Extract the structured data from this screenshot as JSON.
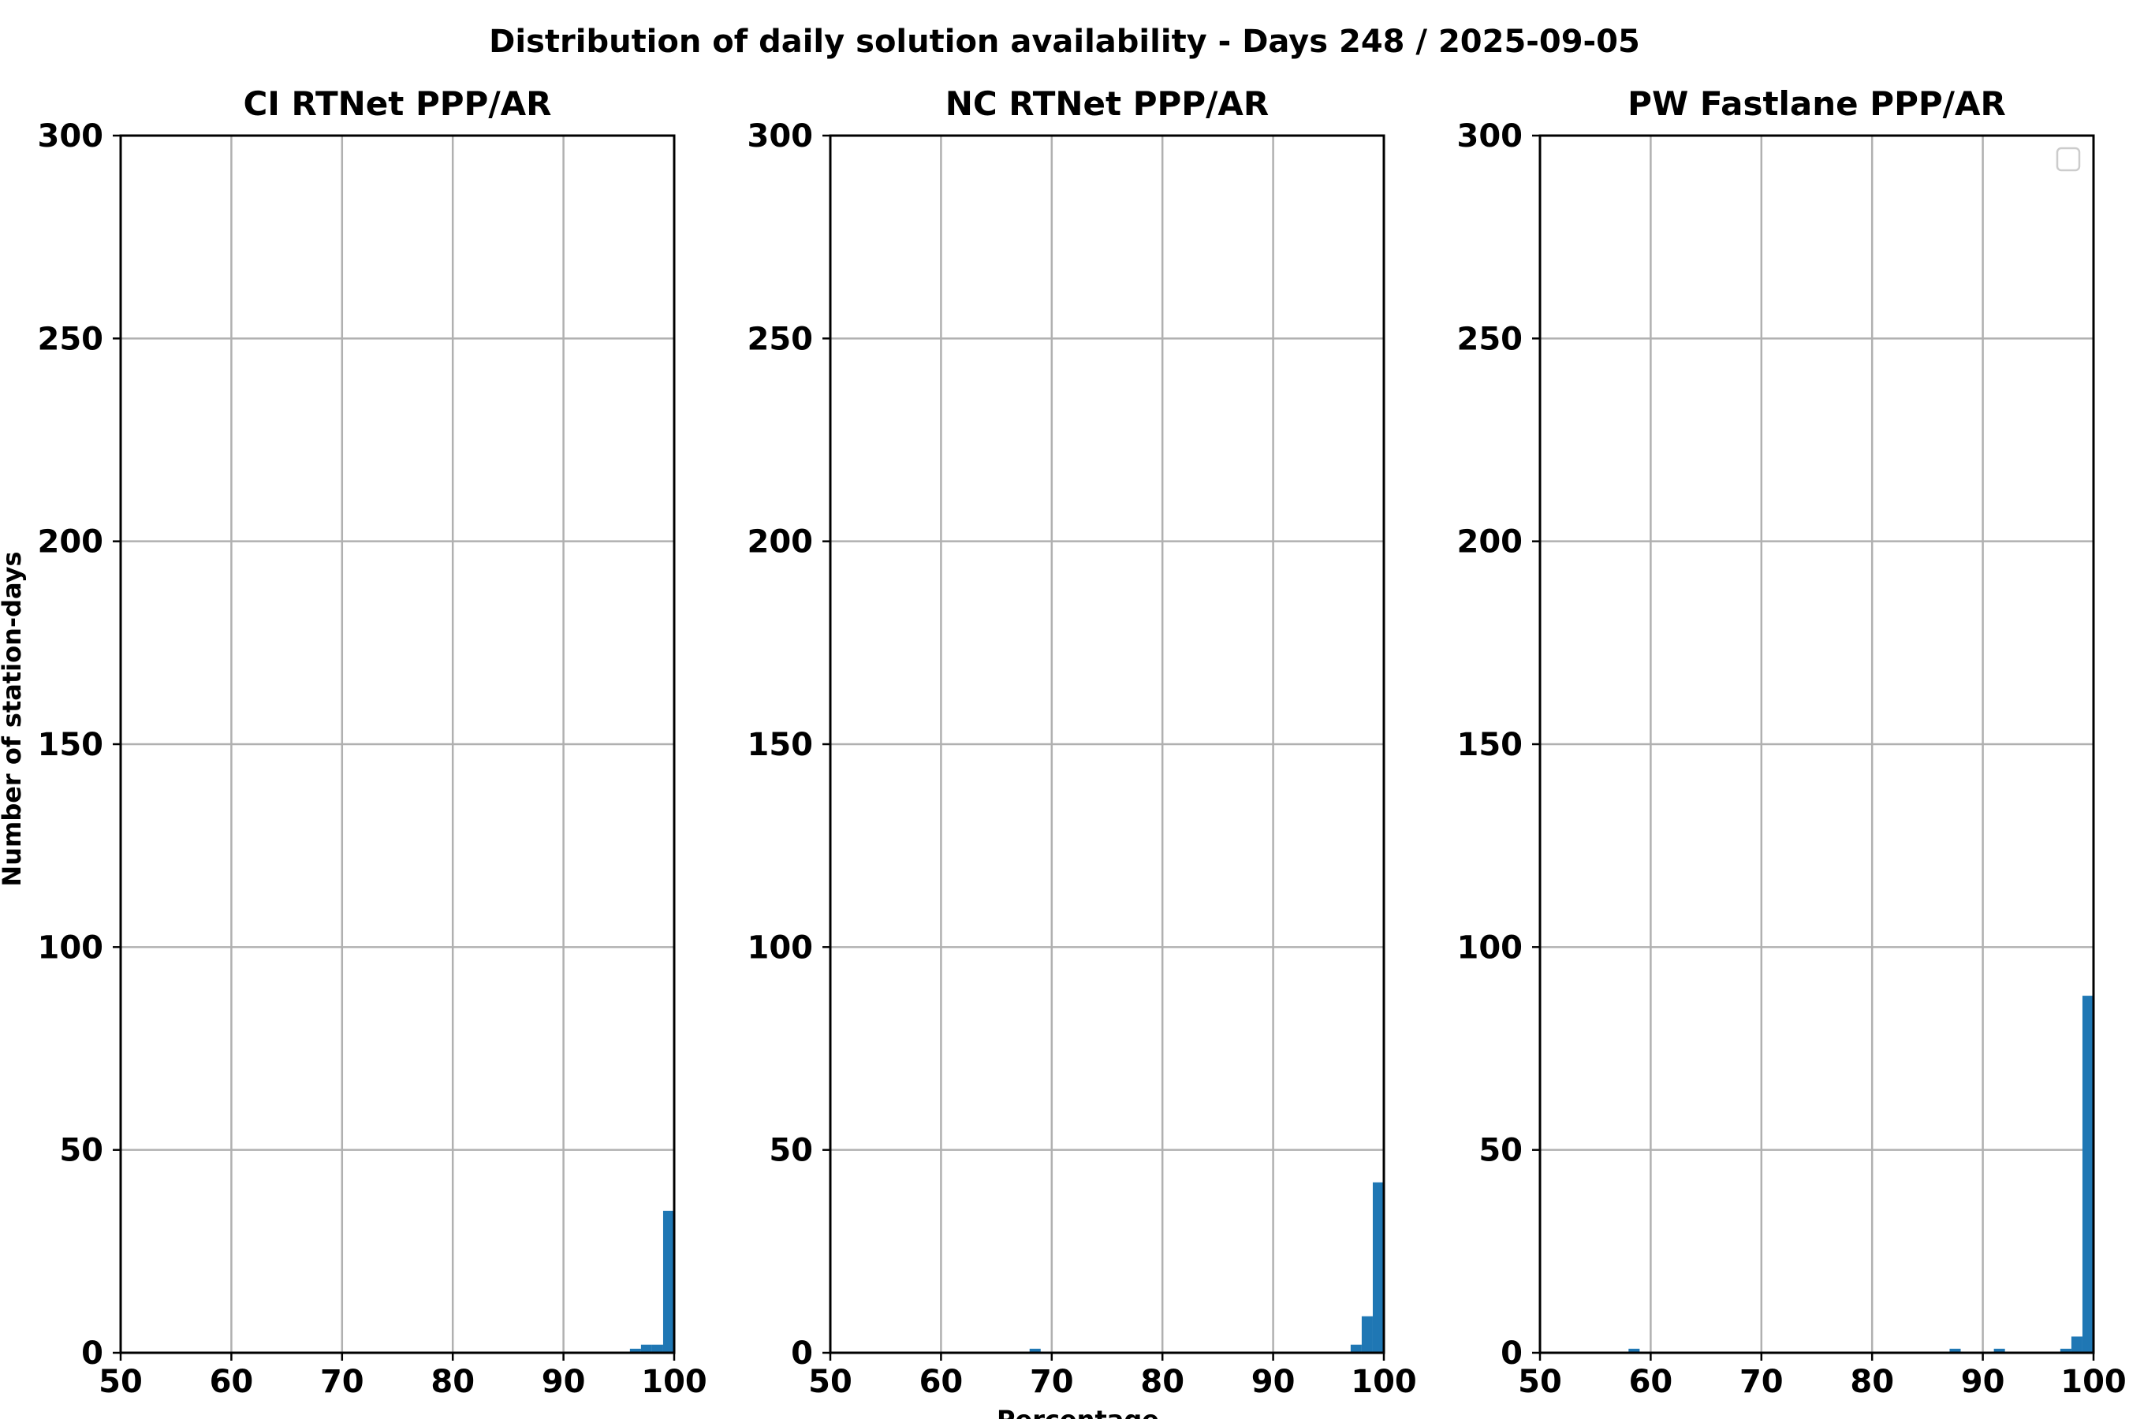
{
  "figure": {
    "suptitle": "Distribution of daily solution availability - Days 248  / 2025-09-05",
    "ylabel": "Number of station-days",
    "xlabel": "Percentage"
  },
  "chart_data": [
    {
      "type": "bar",
      "title": "CI RTNet PPP/AR",
      "xlim": [
        50,
        100
      ],
      "ylim": [
        0,
        300
      ],
      "xticks": [
        "50",
        "60",
        "70",
        "80",
        "90",
        "100"
      ],
      "yticks": [
        "0",
        "50",
        "100",
        "150",
        "200",
        "250",
        "300"
      ],
      "grid": true,
      "bar_color": "#1f77b4",
      "bin_width": 1,
      "bins": [
        {
          "x": 96,
          "count": 1
        },
        {
          "x": 97,
          "count": 2
        },
        {
          "x": 98,
          "count": 2
        },
        {
          "x": 99,
          "count": 35
        }
      ]
    },
    {
      "type": "bar",
      "title": "NC RTNet PPP/AR",
      "xlim": [
        50,
        100
      ],
      "ylim": [
        0,
        300
      ],
      "xticks": [
        "50",
        "60",
        "70",
        "80",
        "90",
        "100"
      ],
      "yticks": [
        "0",
        "50",
        "100",
        "150",
        "200",
        "250",
        "300"
      ],
      "grid": true,
      "bar_color": "#1f77b4",
      "bin_width": 1,
      "bins": [
        {
          "x": 68,
          "count": 1
        },
        {
          "x": 97,
          "count": 2
        },
        {
          "x": 98,
          "count": 9
        },
        {
          "x": 99,
          "count": 42
        }
      ]
    },
    {
      "type": "bar",
      "title": "PW Fastlane PPP/AR",
      "xlim": [
        50,
        100
      ],
      "ylim": [
        0,
        300
      ],
      "xticks": [
        "50",
        "60",
        "70",
        "80",
        "90",
        "100"
      ],
      "yticks": [
        "0",
        "50",
        "100",
        "150",
        "200",
        "250",
        "300"
      ],
      "grid": true,
      "legend": "top-right",
      "bar_color": "#1f77b4",
      "bin_width": 1,
      "bins": [
        {
          "x": 58,
          "count": 1
        },
        {
          "x": 87,
          "count": 1
        },
        {
          "x": 91,
          "count": 1
        },
        {
          "x": 97,
          "count": 1
        },
        {
          "x": 98,
          "count": 4
        },
        {
          "x": 99,
          "count": 88
        }
      ]
    }
  ]
}
